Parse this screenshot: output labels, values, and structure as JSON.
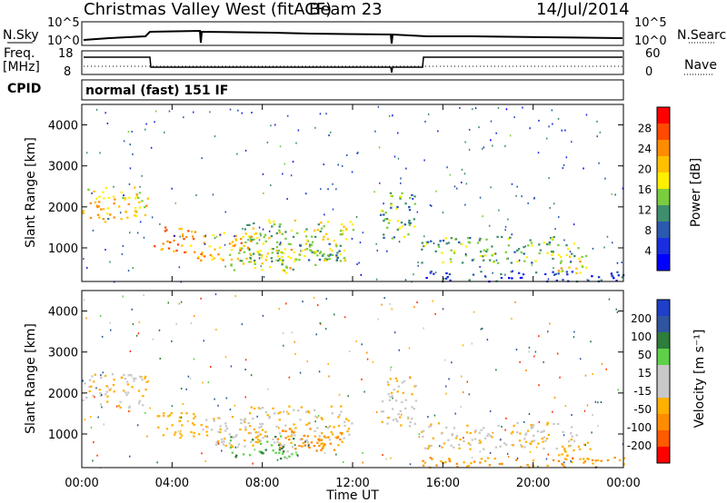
{
  "header": {
    "station": "Christmas Valley West (fitACF)",
    "beam": "Beam 23",
    "date": "14/Jul/2014"
  },
  "panels": {
    "nsky": {
      "label": "N.Sky",
      "ticks": [
        "10^5",
        "10^0"
      ]
    },
    "nsearch": {
      "label": "N.Search"
    },
    "freq": {
      "label": "Freq.",
      "unit": "[MHz]",
      "ticks": [
        "18",
        "8"
      ]
    },
    "nave": {
      "label": "Nave",
      "ticks": [
        "60",
        "0"
      ]
    },
    "cpid": {
      "label": "CPID",
      "text": "normal (fast) 151 IF"
    }
  },
  "axes": {
    "x_label": "Time UT",
    "x_ticks": [
      "00:00",
      "04:00",
      "08:00",
      "12:00",
      "16:00",
      "20:00",
      "00:00"
    ],
    "y_label": "Slant Range [km]",
    "y_ticks": [
      "4000",
      "3000",
      "2000",
      "1000"
    ]
  },
  "colorbars": {
    "power": {
      "label": "Power [dB]",
      "ticks": [
        "28",
        "24",
        "20",
        "16",
        "12",
        "8",
        "4"
      ],
      "colors": [
        "#ff0000",
        "#ff4a00",
        "#ff8c00",
        "#ffc000",
        "#ffef00",
        "#7acd3e",
        "#3f8f6e",
        "#2a5ab0",
        "#1a2ee0",
        "#0000ff"
      ]
    },
    "velocity": {
      "label": "Velocity [m s⁻¹]",
      "ticks": [
        "200",
        "100",
        "50",
        "15",
        "-15",
        "-50",
        "-100",
        "-200"
      ],
      "colors": [
        "#1f3ec9",
        "#2f55a0",
        "#2e7d3a",
        "#5fd04a",
        "#c8c8c8",
        "#c8c8c8",
        "#ffb000",
        "#ff8c00",
        "#ff5a00",
        "#ff0000"
      ]
    }
  },
  "chart_data": {
    "type": "heatmap",
    "x_range_hours": [
      0,
      24
    ],
    "y_range_km": [
      180,
      4500
    ],
    "echo_regions": [
      {
        "t": [
          0.0,
          2.9
        ],
        "r": [
          1650,
          2500
        ],
        "power": 20,
        "velocity": -10
      },
      {
        "t": [
          3.1,
          5.0
        ],
        "r": [
          900,
          1550
        ],
        "power": 24,
        "velocity": -40
      },
      {
        "t": [
          5.1,
          7.5
        ],
        "r": [
          700,
          1450
        ],
        "power": 22,
        "velocity": -10
      },
      {
        "t": [
          6.5,
          9.5
        ],
        "r": [
          400,
          1000
        ],
        "power": 18,
        "velocity": 30
      },
      {
        "t": [
          7.0,
          12.0
        ],
        "r": [
          700,
          1700
        ],
        "power": 16,
        "velocity": -20
      },
      {
        "t": [
          8.5,
          11.5
        ],
        "r": [
          600,
          1150
        ],
        "power": 14,
        "velocity": -80
      },
      {
        "t": [
          13.2,
          14.8
        ],
        "r": [
          1200,
          2400
        ],
        "power": 14,
        "velocity": -10
      },
      {
        "t": [
          15.0,
          22.0
        ],
        "r": [
          650,
          1300
        ],
        "power": 14,
        "velocity": -10
      },
      {
        "t": [
          21.0,
          22.5
        ],
        "r": [
          400,
          850
        ],
        "power": 20,
        "velocity": -40
      },
      {
        "t": [
          15.0,
          24.0
        ],
        "r": [
          200,
          450
        ],
        "power": 8,
        "velocity": -60
      }
    ]
  }
}
